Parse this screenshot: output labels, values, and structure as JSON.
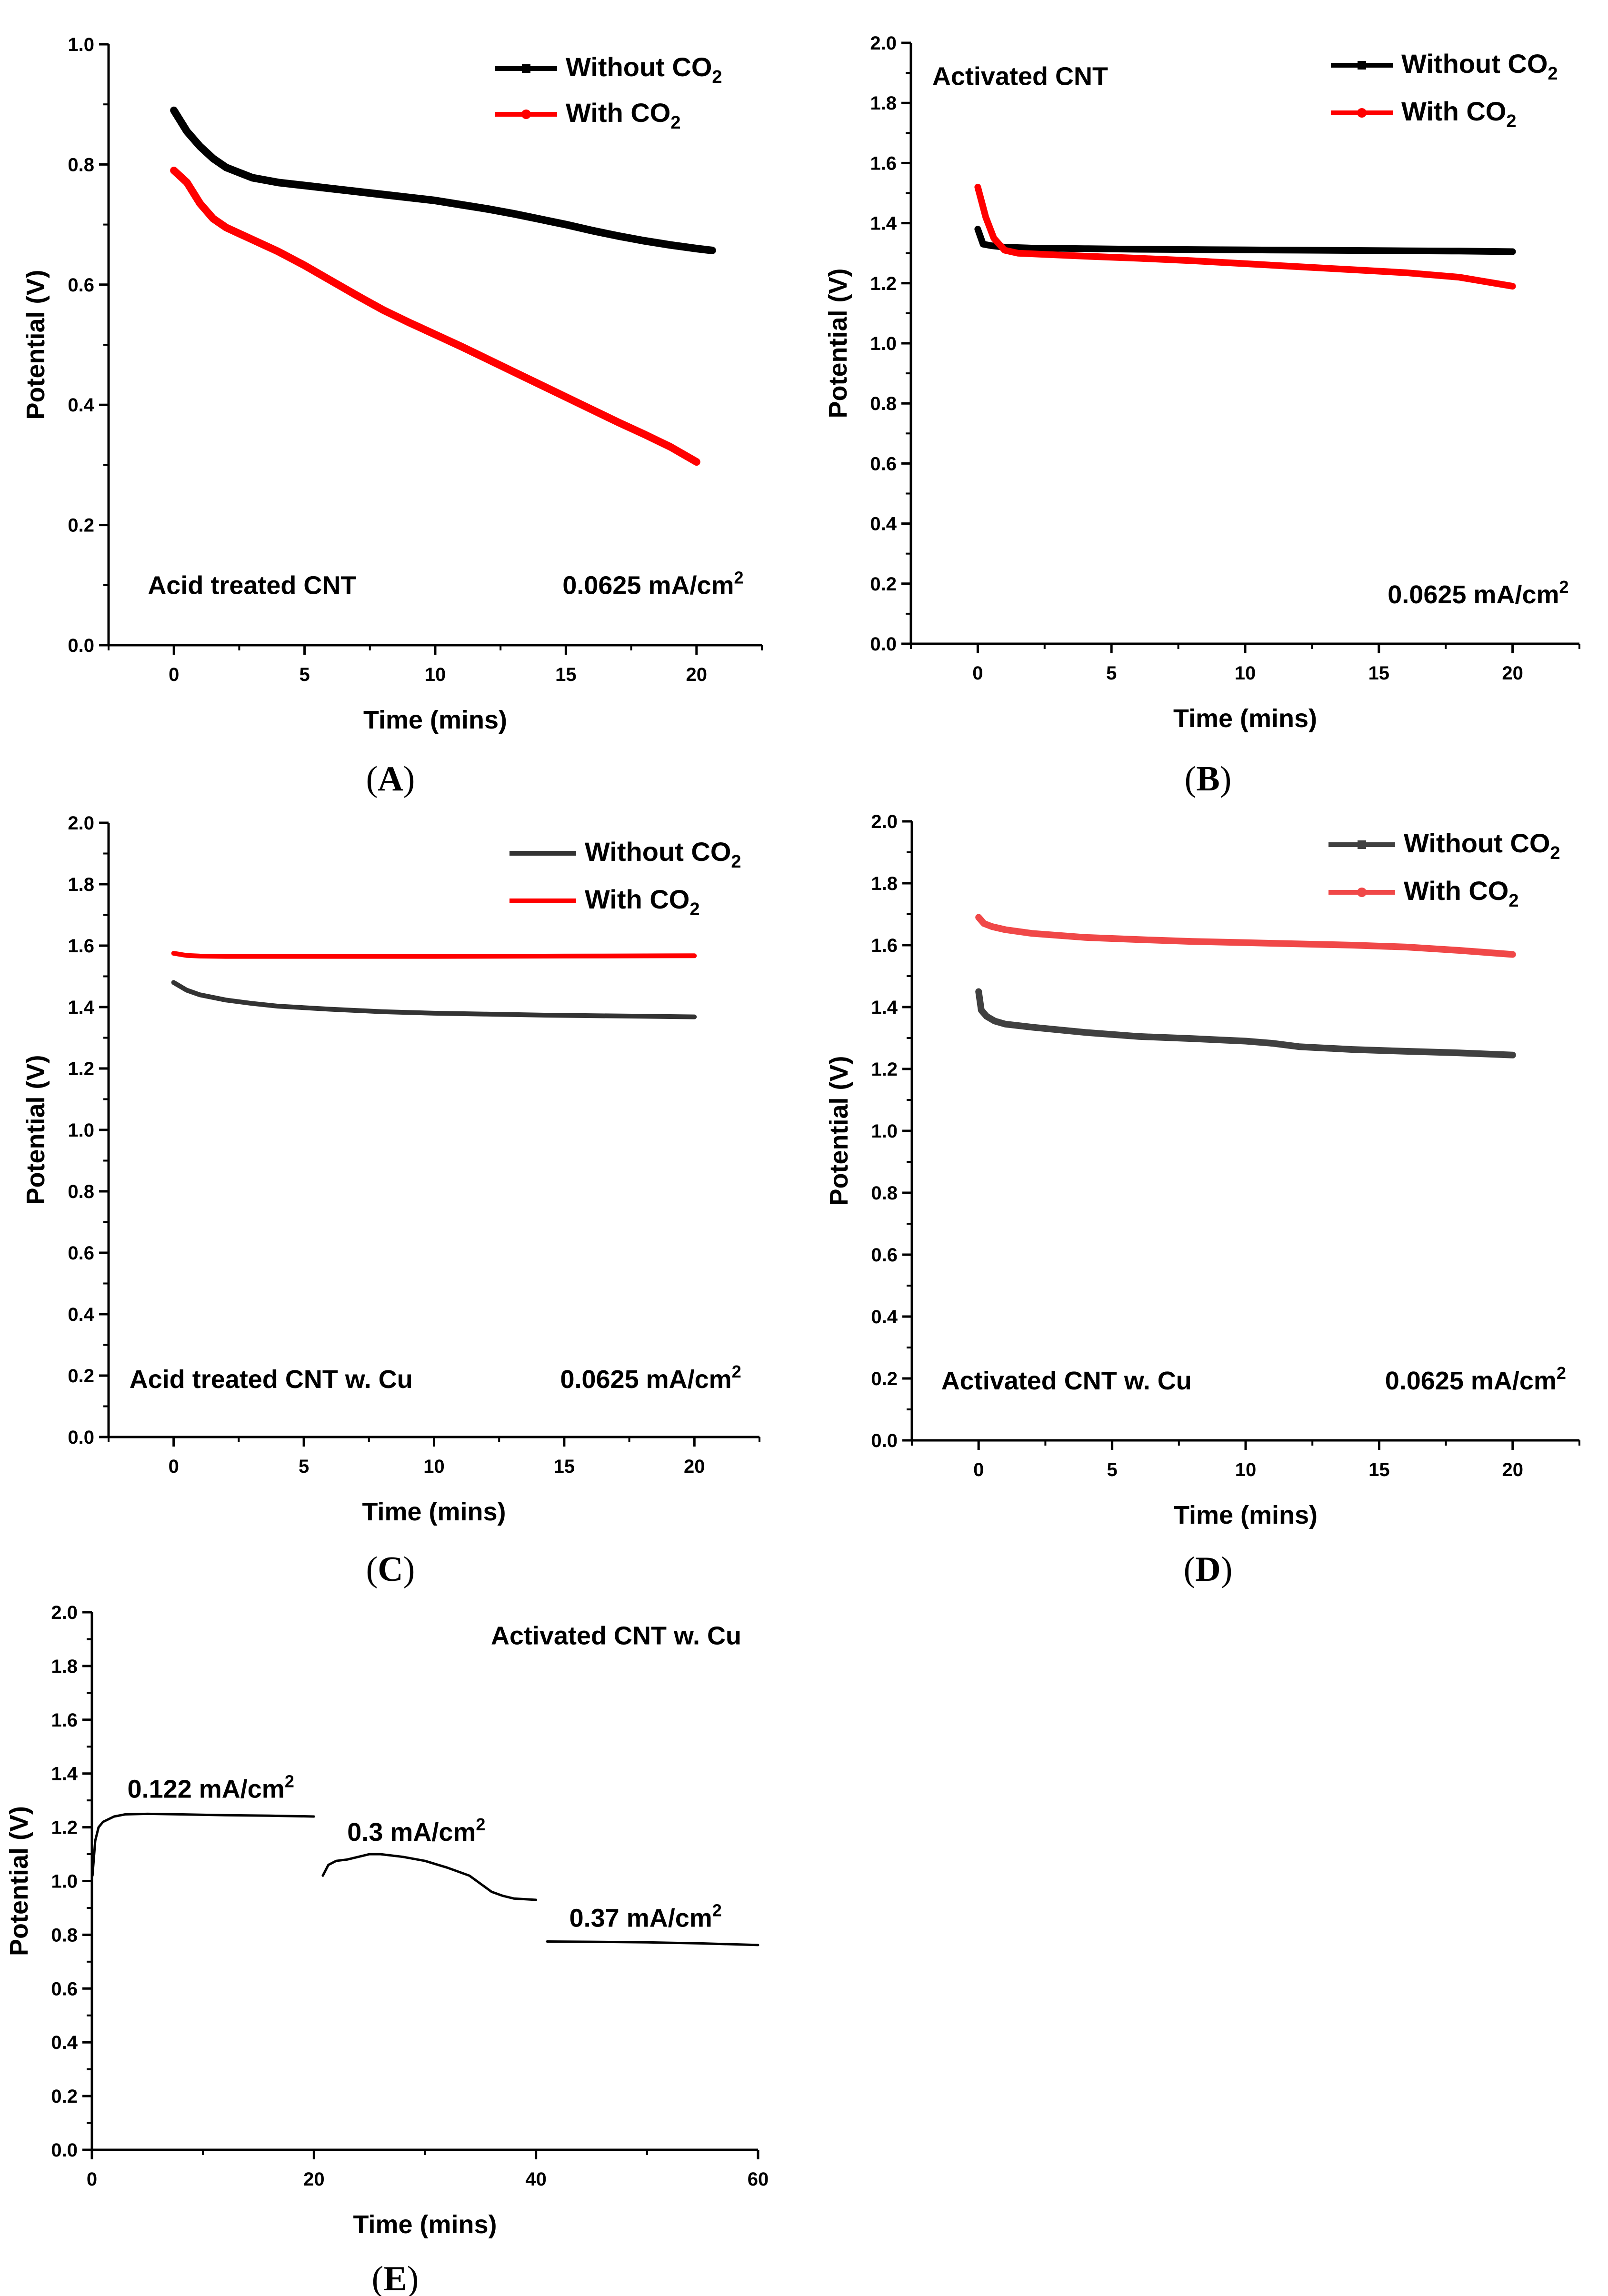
{
  "chart_data": [
    {
      "id": "A",
      "type": "line",
      "caption": "A",
      "xlabel": "Time (mins)",
      "ylabel": "Potential (V)",
      "xlim": [
        -2.5,
        22.5
      ],
      "ylim": [
        0.0,
        1.0
      ],
      "xticks": [
        0,
        5,
        10,
        15,
        20
      ],
      "yticks": [
        0.0,
        0.2,
        0.4,
        0.6,
        0.8,
        1.0
      ],
      "xtick_labels": [
        "0",
        "5",
        "10",
        "15",
        "20"
      ],
      "ytick_labels": [
        "0.0",
        "0.2",
        "0.4",
        "0.6",
        "0.8",
        "1.0"
      ],
      "legend": [
        {
          "label": "Without CO",
          "sub": "2",
          "color": "#000000",
          "marker": "square"
        },
        {
          "label": "With CO",
          "sub": "2",
          "color": "#ff0000",
          "marker": "circle"
        }
      ],
      "annotations": [
        {
          "text": "Acid treated CNT",
          "sup": "",
          "anchor": "start",
          "x": -1.0,
          "y": 0.085
        },
        {
          "text": "0.0625 mA/cm",
          "sup": "2",
          "anchor": "end",
          "x": 21.8,
          "y": 0.085
        }
      ],
      "series": [
        {
          "name": "Without CO2",
          "color": "#000000",
          "width": 16,
          "x": [
            0,
            0.5,
            1,
            1.5,
            2,
            3,
            4,
            5,
            6,
            7,
            8,
            9,
            10,
            11,
            12,
            13,
            14,
            15,
            16,
            17,
            18,
            19,
            20,
            20.6
          ],
          "y": [
            0.89,
            0.855,
            0.83,
            0.81,
            0.795,
            0.778,
            0.77,
            0.765,
            0.76,
            0.755,
            0.75,
            0.745,
            0.74,
            0.733,
            0.726,
            0.718,
            0.709,
            0.7,
            0.69,
            0.681,
            0.673,
            0.666,
            0.66,
            0.657
          ]
        },
        {
          "name": "With CO2",
          "color": "#ff0000",
          "width": 16,
          "x": [
            0,
            0.5,
            1,
            1.5,
            2,
            3,
            4,
            5,
            6,
            7,
            8,
            9,
            10,
            11,
            12,
            13,
            14,
            15,
            16,
            17,
            18,
            19,
            20
          ],
          "y": [
            0.79,
            0.77,
            0.735,
            0.71,
            0.695,
            0.675,
            0.655,
            0.632,
            0.607,
            0.582,
            0.558,
            0.537,
            0.517,
            0.497,
            0.476,
            0.455,
            0.434,
            0.413,
            0.392,
            0.371,
            0.351,
            0.33,
            0.305
          ]
        }
      ]
    },
    {
      "id": "B",
      "type": "line",
      "caption": "B",
      "xlabel": "Time (mins)",
      "ylabel": "Potential (V)",
      "xlim": [
        -2.5,
        22.5
      ],
      "ylim": [
        0.0,
        2.0
      ],
      "xticks": [
        0,
        5,
        10,
        15,
        20
      ],
      "yticks": [
        0.0,
        0.2,
        0.4,
        0.6,
        0.8,
        1.0,
        1.2,
        1.4,
        1.6,
        1.8,
        2.0
      ],
      "xtick_labels": [
        "0",
        "5",
        "10",
        "15",
        "20"
      ],
      "ytick_labels": [
        "0.0",
        "0.2",
        "0.4",
        "0.6",
        "0.8",
        "1.0",
        "1.2",
        "1.4",
        "1.6",
        "1.8",
        "2.0"
      ],
      "legend": [
        {
          "label": "Without CO",
          "sub": "2",
          "color": "#000000",
          "marker": "square"
        },
        {
          "label": "With CO",
          "sub": "2",
          "color": "#ff0000",
          "marker": "circle"
        }
      ],
      "annotations": [
        {
          "text": "Activated CNT",
          "sup": "",
          "anchor": "start",
          "x": -1.7,
          "y": 1.86
        },
        {
          "text": "0.0625 mA/cm",
          "sup": "2",
          "anchor": "end",
          "x": 22.1,
          "y": 0.135
        }
      ],
      "series": [
        {
          "name": "Without CO2",
          "color": "#000000",
          "width": 14,
          "x": [
            0,
            0.2,
            0.5,
            1,
            2,
            4,
            6,
            8,
            10,
            12,
            14,
            16,
            18,
            20
          ],
          "y": [
            1.38,
            1.33,
            1.325,
            1.32,
            1.317,
            1.315,
            1.313,
            1.312,
            1.311,
            1.31,
            1.309,
            1.308,
            1.307,
            1.305
          ]
        },
        {
          "name": "With CO2",
          "color": "#ff0000",
          "width": 14,
          "x": [
            0,
            0.3,
            0.6,
            1,
            1.5,
            2,
            4,
            6,
            8,
            10,
            12,
            14,
            16,
            18,
            19,
            20
          ],
          "y": [
            1.52,
            1.42,
            1.35,
            1.31,
            1.3,
            1.298,
            1.29,
            1.283,
            1.275,
            1.265,
            1.255,
            1.245,
            1.235,
            1.22,
            1.205,
            1.19
          ]
        }
      ]
    },
    {
      "id": "C",
      "type": "line",
      "caption": "C",
      "xlabel": "Time (mins)",
      "ylabel": "Potential (V)",
      "xlim": [
        -2.5,
        22.5
      ],
      "ylim": [
        0.0,
        2.0
      ],
      "xticks": [
        0,
        5,
        10,
        15,
        20
      ],
      "yticks": [
        0.0,
        0.2,
        0.4,
        0.6,
        0.8,
        1.0,
        1.2,
        1.4,
        1.6,
        1.8,
        2.0
      ],
      "xtick_labels": [
        "0",
        "5",
        "10",
        "15",
        "20"
      ],
      "ytick_labels": [
        "0.0",
        "0.2",
        "0.4",
        "0.6",
        "0.8",
        "1.0",
        "1.2",
        "1.4",
        "1.6",
        "1.8",
        "2.0"
      ],
      "legend": [
        {
          "label": "Without CO",
          "sub": "2",
          "color": "#333333",
          "marker": "none"
        },
        {
          "label": "With CO",
          "sub": "2",
          "color": "#ff0000",
          "marker": "none"
        }
      ],
      "annotations": [
        {
          "text": "Acid treated CNT w. Cu",
          "sup": "",
          "anchor": "start",
          "x": -1.7,
          "y": 0.16
        },
        {
          "text": "0.0625 mA/cm",
          "sup": "2",
          "anchor": "end",
          "x": 21.8,
          "y": 0.16
        }
      ],
      "series": [
        {
          "name": "Without CO2",
          "color": "#333333",
          "width": 10,
          "x": [
            0,
            0.5,
            1,
            2,
            3,
            4,
            6,
            8,
            10,
            12,
            14,
            16,
            18,
            20
          ],
          "y": [
            1.48,
            1.455,
            1.44,
            1.423,
            1.412,
            1.403,
            1.393,
            1.385,
            1.38,
            1.377,
            1.374,
            1.372,
            1.37,
            1.368
          ]
        },
        {
          "name": "With CO2",
          "color": "#ff0000",
          "width": 10,
          "x": [
            0,
            0.5,
            1,
            2,
            5,
            10,
            15,
            20
          ],
          "y": [
            1.575,
            1.568,
            1.566,
            1.565,
            1.565,
            1.565,
            1.566,
            1.567
          ]
        }
      ]
    },
    {
      "id": "D",
      "type": "line",
      "caption": "D",
      "xlabel": "Time (mins)",
      "ylabel": "Potential (V)",
      "xlim": [
        -2.5,
        22.5
      ],
      "ylim": [
        0.0,
        2.0
      ],
      "xticks": [
        0,
        5,
        10,
        15,
        20
      ],
      "yticks": [
        0.0,
        0.2,
        0.4,
        0.6,
        0.8,
        1.0,
        1.2,
        1.4,
        1.6,
        1.8,
        2.0
      ],
      "xtick_labels": [
        "0",
        "5",
        "10",
        "15",
        "20"
      ],
      "ytick_labels": [
        "0.0",
        "0.2",
        "0.4",
        "0.6",
        "0.8",
        "1.0",
        "1.2",
        "1.4",
        "1.6",
        "1.8",
        "2.0"
      ],
      "legend": [
        {
          "label": "Without CO",
          "sub": "2",
          "color": "#404040",
          "marker": "square"
        },
        {
          "label": "With CO",
          "sub": "2",
          "color": "#f04848",
          "marker": "circle"
        }
      ],
      "annotations": [
        {
          "text": "Activated CNT w. Cu",
          "sup": "",
          "anchor": "start",
          "x": -1.4,
          "y": 0.165
        },
        {
          "text": "0.0625 mA/cm",
          "sup": "2",
          "anchor": "end",
          "x": 22.0,
          "y": 0.165
        }
      ],
      "series": [
        {
          "name": "Without CO2",
          "color": "#404040",
          "width": 14,
          "x": [
            0,
            0.1,
            0.3,
            0.6,
            1,
            2,
            4,
            6,
            8,
            10,
            11,
            12,
            14,
            16,
            18,
            20
          ],
          "y": [
            1.45,
            1.39,
            1.37,
            1.355,
            1.345,
            1.335,
            1.318,
            1.305,
            1.298,
            1.29,
            1.283,
            1.272,
            1.263,
            1.257,
            1.252,
            1.245
          ]
        },
        {
          "name": "With CO2",
          "color": "#f04848",
          "width": 14,
          "x": [
            0,
            0.2,
            0.5,
            1,
            2,
            4,
            6,
            8,
            10,
            12,
            14,
            16,
            18,
            20
          ],
          "y": [
            1.69,
            1.67,
            1.66,
            1.65,
            1.638,
            1.625,
            1.618,
            1.612,
            1.608,
            1.604,
            1.6,
            1.594,
            1.583,
            1.57
          ]
        }
      ]
    },
    {
      "id": "E",
      "type": "line",
      "caption": "E",
      "xlabel": "Time (mins)",
      "ylabel": "Potential (V)",
      "xlim": [
        0,
        60
      ],
      "ylim": [
        0.0,
        2.0
      ],
      "xticks": [
        0,
        20,
        40,
        60
      ],
      "yticks": [
        0.0,
        0.2,
        0.4,
        0.6,
        0.8,
        1.0,
        1.2,
        1.4,
        1.6,
        1.8,
        2.0
      ],
      "xtick_labels": [
        "0",
        "20",
        "40",
        "60"
      ],
      "ytick_labels": [
        "0.0",
        "0.2",
        "0.4",
        "0.6",
        "0.8",
        "1.0",
        "1.2",
        "1.4",
        "1.6",
        "1.8",
        "2.0"
      ],
      "legend": [],
      "annotations": [
        {
          "text": "Activated CNT w. Cu",
          "sup": "",
          "anchor": "end",
          "x": 58.5,
          "y": 1.88
        },
        {
          "text": "0.122 mA/cm",
          "sup": "2",
          "anchor": "start",
          "x": 3.2,
          "y": 1.31
        },
        {
          "text": "0.3 mA/cm",
          "sup": "2",
          "anchor": "start",
          "x": 23.0,
          "y": 1.15
        },
        {
          "text": "0.37 mA/cm",
          "sup": "2",
          "anchor": "start",
          "x": 43.0,
          "y": 0.83
        }
      ],
      "series": [
        {
          "name": "0.122 mA/cm2",
          "color": "#000000",
          "width": 5,
          "x": [
            0.05,
            0.3,
            0.6,
            1,
            2,
            3,
            5,
            8,
            12,
            16,
            20
          ],
          "y": [
            1.02,
            1.15,
            1.2,
            1.22,
            1.24,
            1.248,
            1.25,
            1.248,
            1.245,
            1.243,
            1.24
          ]
        },
        {
          "name": "0.3 mA/cm2",
          "color": "#000000",
          "width": 5,
          "x": [
            20.8,
            21.3,
            22,
            23,
            24,
            25,
            26,
            28,
            30,
            32,
            34,
            35,
            36,
            37,
            38,
            40
          ],
          "y": [
            1.02,
            1.06,
            1.075,
            1.08,
            1.09,
            1.1,
            1.1,
            1.09,
            1.075,
            1.05,
            1.02,
            0.99,
            0.96,
            0.945,
            0.935,
            0.93
          ]
        },
        {
          "name": "0.37 mA/cm2",
          "color": "#000000",
          "width": 5,
          "x": [
            41,
            45,
            50,
            55,
            60
          ],
          "y": [
            0.775,
            0.774,
            0.772,
            0.768,
            0.762
          ]
        }
      ]
    }
  ]
}
